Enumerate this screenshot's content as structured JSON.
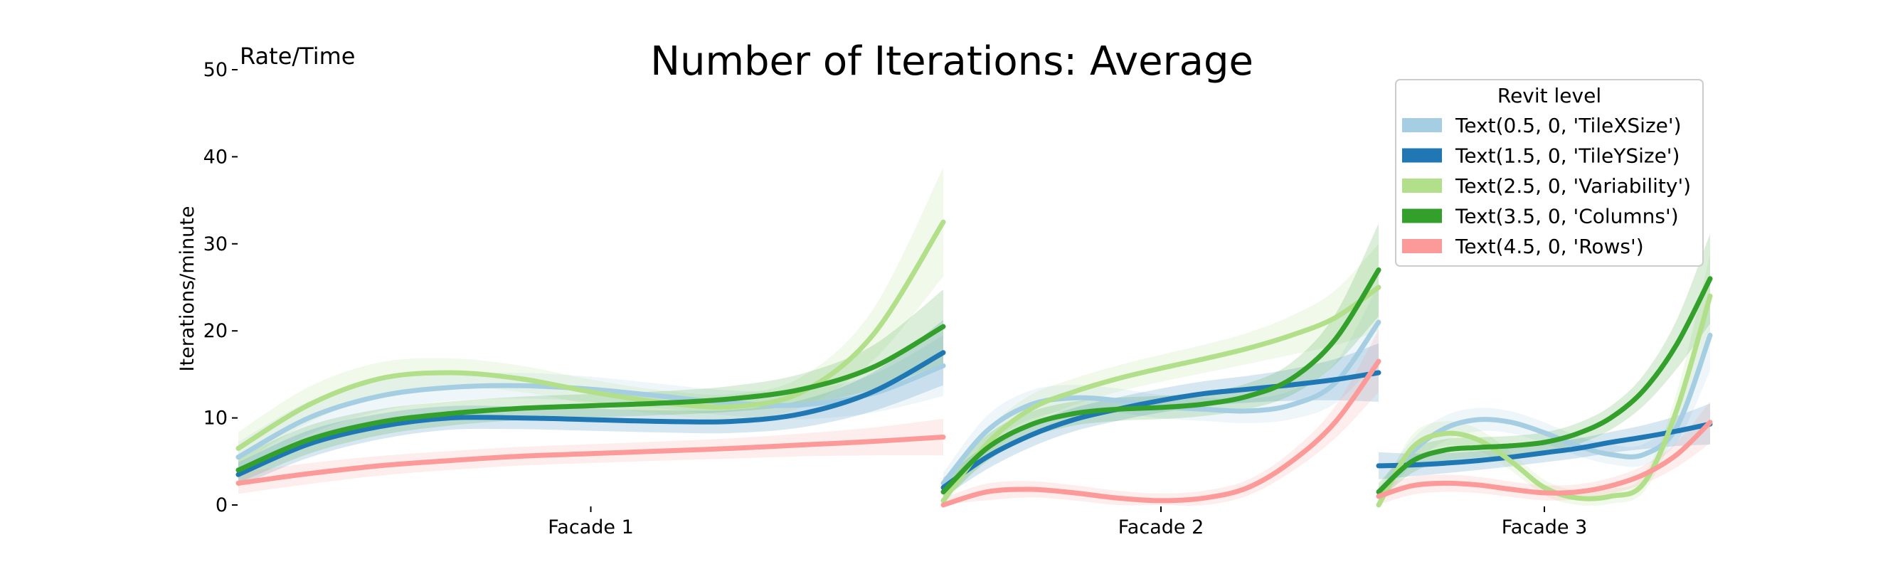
{
  "chart_data": {
    "type": "line",
    "title": "Number of Iterations: Average",
    "corner_label": "Rate/Time",
    "ylabel": "Iterations/minute",
    "xlabel": "",
    "ylim": [
      0,
      50
    ],
    "yticks": [
      0,
      10,
      20,
      30,
      40,
      50
    ],
    "grid": false,
    "legend": {
      "title": "Revit level",
      "placement": "top-right"
    },
    "facets": [
      {
        "label": "Facade 1"
      },
      {
        "label": "Facade 2"
      },
      {
        "label": "Facade 3"
      }
    ],
    "series": [
      {
        "name": "Text(0.5, 0, 'TileXSize')",
        "color": "#a6cee3",
        "facets": [
          [
            [
              0,
              5.5
            ],
            [
              0.1,
              10
            ],
            [
              0.2,
              12.5
            ],
            [
              0.3,
              13.5
            ],
            [
              0.4,
              13.7
            ],
            [
              0.5,
              13.3
            ],
            [
              0.6,
              12.5
            ],
            [
              0.7,
              11.7
            ],
            [
              0.8,
              11.5
            ],
            [
              0.9,
              12.8
            ],
            [
              1,
              16
            ]
          ],
          [
            [
              0,
              2.5
            ],
            [
              0.1,
              8.5
            ],
            [
              0.2,
              11.5
            ],
            [
              0.3,
              12.3
            ],
            [
              0.4,
              12
            ],
            [
              0.5,
              11.3
            ],
            [
              0.6,
              11
            ],
            [
              0.7,
              10.8
            ],
            [
              0.8,
              11.5
            ],
            [
              0.9,
              14
            ],
            [
              1,
              21
            ]
          ],
          [
            [
              0,
              1
            ],
            [
              0.1,
              6
            ],
            [
              0.2,
              8.8
            ],
            [
              0.3,
              9.8
            ],
            [
              0.4,
              9.5
            ],
            [
              0.5,
              8.3
            ],
            [
              0.6,
              6.8
            ],
            [
              0.7,
              5.8
            ],
            [
              0.8,
              5.8
            ],
            [
              0.9,
              9
            ],
            [
              1,
              19.5
            ]
          ]
        ]
      },
      {
        "name": "Text(1.5, 0, 'TileYSize')",
        "color": "#1f78b4",
        "facets": [
          [
            [
              0,
              3.5
            ],
            [
              0.1,
              7
            ],
            [
              0.2,
              9
            ],
            [
              0.3,
              10
            ],
            [
              0.4,
              10
            ],
            [
              0.5,
              9.8
            ],
            [
              0.6,
              9.6
            ],
            [
              0.7,
              9.6
            ],
            [
              0.8,
              10.5
            ],
            [
              0.9,
              13
            ],
            [
              1,
              17.5
            ]
          ],
          [
            [
              0,
              2
            ],
            [
              0.1,
              5.5
            ],
            [
              0.2,
              8
            ],
            [
              0.3,
              9.8
            ],
            [
              0.4,
              11
            ],
            [
              0.5,
              12
            ],
            [
              0.6,
              12.8
            ],
            [
              0.7,
              13.3
            ],
            [
              0.8,
              13.8
            ],
            [
              0.9,
              14.4
            ],
            [
              1,
              15.2
            ]
          ],
          [
            [
              0,
              4.5
            ],
            [
              0.1,
              4.6
            ],
            [
              0.2,
              4.8
            ],
            [
              0.3,
              5.1
            ],
            [
              0.4,
              5.5
            ],
            [
              0.5,
              6
            ],
            [
              0.6,
              6.5
            ],
            [
              0.7,
              7.2
            ],
            [
              0.8,
              7.8
            ],
            [
              0.9,
              8.5
            ],
            [
              1,
              9.3
            ]
          ]
        ]
      },
      {
        "name": "Text(2.5, 0, 'Variability')",
        "color": "#b2df8a",
        "facets": [
          [
            [
              0,
              6.5
            ],
            [
              0.1,
              11.5
            ],
            [
              0.2,
              14.5
            ],
            [
              0.3,
              15.2
            ],
            [
              0.4,
              14.5
            ],
            [
              0.5,
              13
            ],
            [
              0.6,
              11.8
            ],
            [
              0.7,
              11.3
            ],
            [
              0.8,
              13
            ],
            [
              0.9,
              19.5
            ],
            [
              1,
              32.5
            ]
          ],
          [
            [
              0,
              0.5
            ],
            [
              0.1,
              7
            ],
            [
              0.2,
              11
            ],
            [
              0.3,
              13
            ],
            [
              0.4,
              14.5
            ],
            [
              0.5,
              15.7
            ],
            [
              0.6,
              16.8
            ],
            [
              0.7,
              18
            ],
            [
              0.8,
              19.5
            ],
            [
              0.9,
              21.5
            ],
            [
              1,
              25
            ]
          ],
          [
            [
              0,
              0
            ],
            [
              0.1,
              6.5
            ],
            [
              0.2,
              8.2
            ],
            [
              0.3,
              7.5
            ],
            [
              0.4,
              5
            ],
            [
              0.5,
              2
            ],
            [
              0.6,
              0.8
            ],
            [
              0.7,
              1
            ],
            [
              0.8,
              2.5
            ],
            [
              0.9,
              11
            ],
            [
              1,
              24
            ]
          ]
        ]
      },
      {
        "name": "Text(3.5, 0, 'Columns')",
        "color": "#33a02c",
        "facets": [
          [
            [
              0,
              4
            ],
            [
              0.1,
              7.5
            ],
            [
              0.2,
              9.5
            ],
            [
              0.3,
              10.5
            ],
            [
              0.4,
              11.1
            ],
            [
              0.5,
              11.4
            ],
            [
              0.6,
              11.7
            ],
            [
              0.7,
              12.2
            ],
            [
              0.8,
              13.3
            ],
            [
              0.9,
              15.8
            ],
            [
              1,
              20.5
            ]
          ],
          [
            [
              0,
              1.5
            ],
            [
              0.1,
              6.5
            ],
            [
              0.2,
              9.2
            ],
            [
              0.3,
              10.5
            ],
            [
              0.4,
              11
            ],
            [
              0.5,
              11.2
            ],
            [
              0.6,
              11.6
            ],
            [
              0.7,
              12.5
            ],
            [
              0.8,
              14.5
            ],
            [
              0.9,
              19
            ],
            [
              1,
              27
            ]
          ],
          [
            [
              0,
              1.5
            ],
            [
              0.1,
              5
            ],
            [
              0.2,
              6.3
            ],
            [
              0.3,
              6.6
            ],
            [
              0.4,
              6.8
            ],
            [
              0.5,
              7.2
            ],
            [
              0.6,
              8.2
            ],
            [
              0.7,
              10
            ],
            [
              0.8,
              13.2
            ],
            [
              0.9,
              18.5
            ],
            [
              1,
              26
            ]
          ]
        ]
      },
      {
        "name": "Text(4.5, 0, 'Rows')",
        "color": "#fb9a99",
        "facets": [
          [
            [
              0,
              2.5
            ],
            [
              0.1,
              3.6
            ],
            [
              0.2,
              4.5
            ],
            [
              0.3,
              5.1
            ],
            [
              0.4,
              5.6
            ],
            [
              0.5,
              5.9
            ],
            [
              0.6,
              6.2
            ],
            [
              0.7,
              6.5
            ],
            [
              0.8,
              6.9
            ],
            [
              0.9,
              7.3
            ],
            [
              1,
              7.8
            ]
          ],
          [
            [
              0,
              0
            ],
            [
              0.1,
              1.5
            ],
            [
              0.2,
              1.8
            ],
            [
              0.3,
              1.4
            ],
            [
              0.4,
              0.8
            ],
            [
              0.5,
              0.5
            ],
            [
              0.6,
              0.8
            ],
            [
              0.7,
              2
            ],
            [
              0.8,
              5
            ],
            [
              0.9,
              9.5
            ],
            [
              1,
              16.5
            ]
          ],
          [
            [
              0,
              1
            ],
            [
              0.1,
              2.2
            ],
            [
              0.2,
              2.5
            ],
            [
              0.3,
              2.3
            ],
            [
              0.4,
              1.8
            ],
            [
              0.5,
              1.4
            ],
            [
              0.6,
              1.5
            ],
            [
              0.7,
              2.2
            ],
            [
              0.8,
              3.5
            ],
            [
              0.9,
              5.8
            ],
            [
              1,
              9.5
            ]
          ]
        ]
      }
    ]
  }
}
